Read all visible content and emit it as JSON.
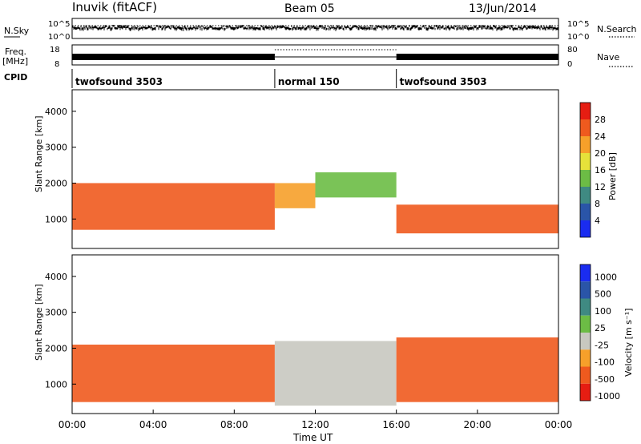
{
  "header": {
    "station": "Inuvik (fitACF)",
    "beam": "Beam 05",
    "date": "13/Jun/2014"
  },
  "noise_panel": {
    "left_label": "N.Sky",
    "right_label": "N.Search",
    "left_ticks": [
      "10^5",
      "10^0"
    ],
    "right_ticks": [
      "10^5",
      "10^0"
    ]
  },
  "freq_panel": {
    "left_label_line1": "Freq.",
    "left_label_line2": "[MHz]",
    "right_label": "Nave",
    "left_ticks": [
      "18",
      "8"
    ],
    "right_ticks": [
      "80",
      "0"
    ]
  },
  "cpid": {
    "label": "CPID",
    "segments": [
      {
        "name": "twofsound 3503",
        "start_h": 0,
        "end_h": 10
      },
      {
        "name": "normal 150",
        "start_h": 10,
        "end_h": 16
      },
      {
        "name": "twofsound 3503",
        "start_h": 16,
        "end_h": 24
      }
    ]
  },
  "time_axis": {
    "label": "Time UT",
    "ticks": [
      "00:00",
      "04:00",
      "08:00",
      "12:00",
      "16:00",
      "20:00",
      "00:00"
    ]
  },
  "chart_data": [
    {
      "type": "heatmap",
      "title": "",
      "xlabel": "Time UT",
      "ylabel": "Slant Range [km]",
      "xlim_hours": [
        0,
        24
      ],
      "ylim": [
        180,
        4600
      ],
      "yticks": [
        "1000",
        "2000",
        "3000",
        "4000"
      ],
      "colorbar": {
        "label": "Power [dB]",
        "ticks": [
          "4",
          "8",
          "12",
          "16",
          "20",
          "24",
          "28"
        ],
        "colors": [
          "#1a2cf0",
          "#2a55a8",
          "#3f8a82",
          "#6cbc45",
          "#e6e23a",
          "#f6a02a",
          "#ef5a1e",
          "#e61d12"
        ],
        "range": [
          0,
          30
        ]
      },
      "bands": [
        {
          "start_h": 0.0,
          "end_h": 10.0,
          "lower_km": 700,
          "upper_km": 2000,
          "power_db": 24
        },
        {
          "start_h": 10.0,
          "end_h": 12.0,
          "lower_km": 1300,
          "upper_km": 2000,
          "power_db": 22
        },
        {
          "start_h": 12.0,
          "end_h": 16.0,
          "lower_km": 1600,
          "upper_km": 2300,
          "power_db": 14
        },
        {
          "start_h": 16.0,
          "end_h": 24.0,
          "lower_km": 600,
          "upper_km": 1400,
          "power_db": 24
        }
      ]
    },
    {
      "type": "heatmap",
      "title": "",
      "xlabel": "Time UT",
      "ylabel": "Slant Range [km]",
      "xlim_hours": [
        0,
        24
      ],
      "ylim": [
        180,
        4600
      ],
      "yticks": [
        "1000",
        "2000",
        "3000",
        "4000"
      ],
      "colorbar": {
        "label": "Velocity [m s⁻¹]",
        "ticks": [
          "1000",
          "500",
          "100",
          "25",
          "-25",
          "-100",
          "-500",
          "-1000"
        ],
        "colors": [
          "#1a2cf0",
          "#2a55a8",
          "#3f8a82",
          "#6cbc45",
          "#c8c8c0",
          "#f6a02a",
          "#ef5a1e",
          "#e61d12"
        ]
      },
      "bands": [
        {
          "start_h": 0.0,
          "end_h": 10.0,
          "lower_km": 500,
          "upper_km": 2100,
          "velocity_ms": -150
        },
        {
          "start_h": 10.0,
          "end_h": 16.0,
          "lower_km": 400,
          "upper_km": 2200,
          "velocity_ms": 0
        },
        {
          "start_h": 16.0,
          "end_h": 24.0,
          "lower_km": 500,
          "upper_km": 2300,
          "velocity_ms": -200
        }
      ]
    }
  ]
}
